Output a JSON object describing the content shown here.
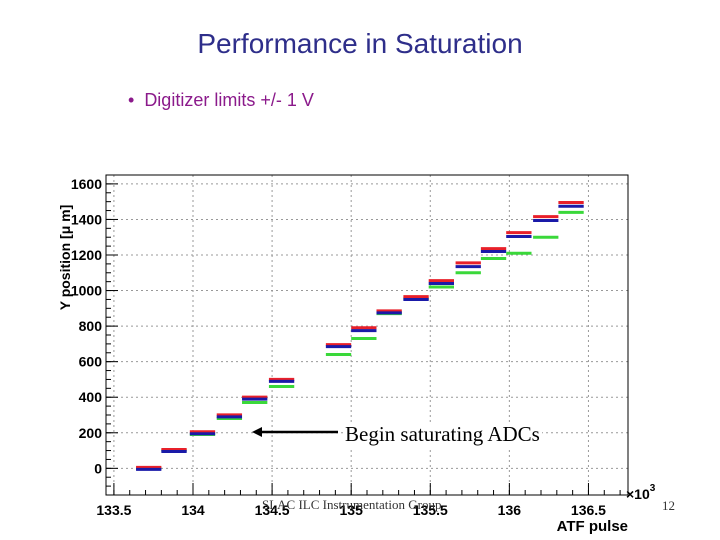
{
  "slide": {
    "title": "Performance in Saturation",
    "bullet": "Digitizer limits +/- 1 V",
    "footer": "SLAC ILC Instrumentation Group",
    "page_number": "12"
  },
  "chart_data": {
    "type": "scatter",
    "title": "",
    "xlabel": "ATF pulse",
    "ylabel": "Y position [μ m]",
    "x_multiplier": "×10",
    "x_multiplier_exp": "3",
    "xlim": [
      133.45,
      136.75
    ],
    "ylim": [
      -150,
      1650
    ],
    "x_ticks": [
      "133.5",
      "134",
      "134.5",
      "135",
      "135.5",
      "136",
      "136.5"
    ],
    "y_ticks": [
      "0",
      "200",
      "400",
      "600",
      "800",
      "1000",
      "1200",
      "1400",
      "1600"
    ],
    "grid": true,
    "annotation": "Begin saturating ADCs",
    "series_colors": {
      "red": "#e8202a",
      "blue": "#1a1aa8",
      "green": "#3ad83a"
    },
    "segments": [
      {
        "x0": 133.64,
        "x1": 133.8,
        "red": 0,
        "blue": 0,
        "green": 0
      },
      {
        "x0": 133.8,
        "x1": 133.96,
        "red": 100,
        "blue": 100,
        "green": 100
      },
      {
        "x0": 133.98,
        "x1": 134.14,
        "red": 200,
        "blue": 200,
        "green": 190
      },
      {
        "x0": 134.15,
        "x1": 134.31,
        "red": 295,
        "blue": 295,
        "green": 280
      },
      {
        "x0": 134.31,
        "x1": 134.47,
        "red": 395,
        "blue": 395,
        "green": 370
      },
      {
        "x0": 134.48,
        "x1": 134.64,
        "red": 495,
        "blue": 495,
        "green": 460
      },
      {
        "x0": 134.84,
        "x1": 135.0,
        "red": 690,
        "blue": 690,
        "green": 640
      },
      {
        "x0": 135.0,
        "x1": 135.16,
        "red": 785,
        "blue": 780,
        "green": 730
      },
      {
        "x0": 135.16,
        "x1": 135.32,
        "red": 880,
        "blue": 880,
        "green": 870
      },
      {
        "x0": 135.33,
        "x1": 135.49,
        "red": 960,
        "blue": 955,
        "green": 955
      },
      {
        "x0": 135.49,
        "x1": 135.65,
        "red": 1050,
        "blue": 1045,
        "green": 1020
      },
      {
        "x0": 135.66,
        "x1": 135.82,
        "red": 1150,
        "blue": 1140,
        "green": 1100
      },
      {
        "x0": 135.82,
        "x1": 135.98,
        "red": 1230,
        "blue": 1225,
        "green": 1180
      },
      {
        "x0": 135.98,
        "x1": 136.14,
        "red": 1320,
        "blue": 1310,
        "green": 1210
      },
      {
        "x0": 136.15,
        "x1": 136.31,
        "red": 1410,
        "blue": 1400,
        "green": 1300
      },
      {
        "x0": 136.31,
        "x1": 136.47,
        "red": 1490,
        "blue": 1480,
        "green": 1440
      }
    ]
  }
}
